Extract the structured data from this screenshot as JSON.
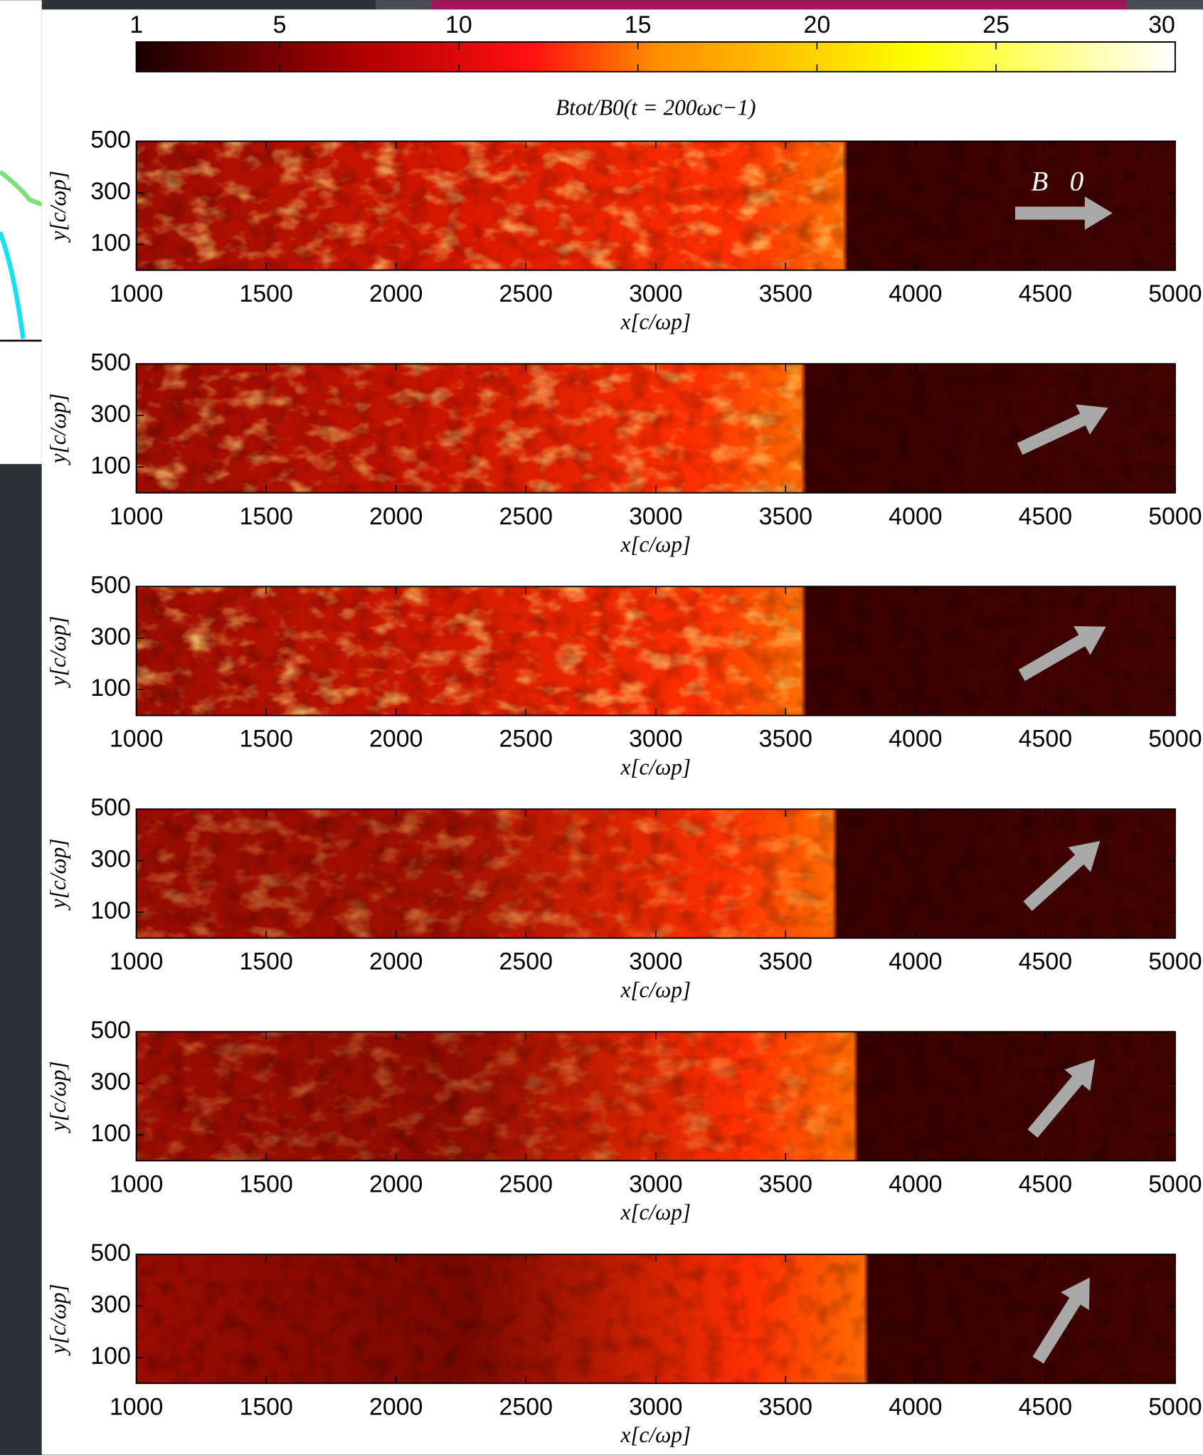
{
  "chart_data": [
    {
      "type": "colorbar",
      "label": "Btot/B0(t = 200ωc−1)",
      "xlim": [
        1,
        30
      ],
      "xticks": [
        1,
        5,
        10,
        15,
        20,
        25,
        30
      ]
    },
    {
      "type": "heatmap",
      "annotation": "B⃗0",
      "xlabel": "x[c/ωp]",
      "ylabel": "y[c/ωp]",
      "xlim": [
        1000,
        5000
      ],
      "ylim": [
        0,
        500
      ],
      "xticks": [
        1000,
        1500,
        2000,
        2500,
        3000,
        3500,
        4000,
        4500,
        5000
      ],
      "yticks": [
        100,
        300,
        500
      ]
    },
    {
      "type": "heatmap",
      "xlabel": "x[c/ωp]",
      "ylabel": "y[c/ωp]",
      "xlim": [
        1000,
        5000
      ],
      "ylim": [
        0,
        500
      ],
      "xticks": [
        1000,
        1500,
        2000,
        2500,
        3000,
        3500,
        4000,
        4500,
        5000
      ],
      "yticks": [
        100,
        300,
        500
      ]
    },
    {
      "type": "heatmap",
      "xlabel": "x[c/ωp]",
      "ylabel": "y[c/ωp]",
      "xlim": [
        1000,
        5000
      ],
      "ylim": [
        0,
        500
      ],
      "xticks": [
        1000,
        1500,
        2000,
        2500,
        3000,
        3500,
        4000,
        4500,
        5000
      ],
      "yticks": [
        100,
        300,
        500
      ]
    },
    {
      "type": "heatmap",
      "xlabel": "x[c/ωp]",
      "ylabel": "y[c/ωp]",
      "xlim": [
        1000,
        5000
      ],
      "ylim": [
        0,
        500
      ],
      "xticks": [
        1000,
        1500,
        2000,
        2500,
        3000,
        3500,
        4000,
        4500,
        5000
      ],
      "yticks": [
        100,
        300,
        500
      ]
    },
    {
      "type": "heatmap",
      "xlabel": "x[c/ωp]",
      "ylabel": "y[c/ωp]",
      "xlim": [
        1000,
        5000
      ],
      "ylim": [
        0,
        500
      ],
      "xticks": [
        1000,
        1500,
        2000,
        2500,
        3000,
        3500,
        4000,
        4500,
        5000
      ],
      "yticks": [
        100,
        300,
        500
      ]
    },
    {
      "type": "heatmap",
      "xlabel": "x[c/ωp]",
      "ylabel": "y[c/ωp]",
      "xlim": [
        1000,
        5000
      ],
      "ylim": [
        0,
        500
      ],
      "xticks": [
        1000,
        1500,
        2000,
        2500,
        3000,
        3500,
        4000,
        4500,
        5000
      ],
      "yticks": [
        100,
        300,
        500
      ]
    }
  ]
}
